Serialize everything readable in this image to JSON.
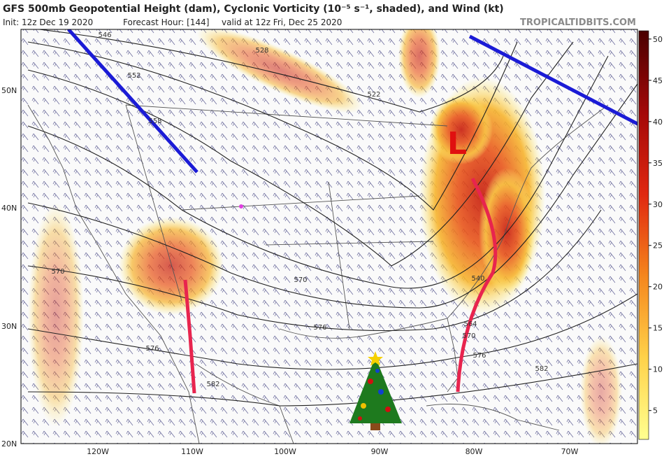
{
  "header": {
    "title": "GFS 500mb Geopotential Height (dam), Cyclonic Vorticity (10⁻⁵ s⁻¹, shaded), and Wind (kt)",
    "init": "Init: 12z Dec 19 2020",
    "forecast": "Forecast Hour: [144]",
    "valid": "valid at 12z Fri, Dec 25 2020",
    "source": "TROPICALTIDBITS.COM"
  },
  "map": {
    "lat_labels": [
      "50N",
      "40N",
      "30N",
      "20N"
    ],
    "lon_labels": [
      "120W",
      "110W",
      "100W",
      "90W",
      "80W",
      "70W"
    ],
    "contour_labels": [
      "546",
      "552",
      "558",
      "528",
      "522",
      "570",
      "576",
      "570",
      "576",
      "582",
      "540",
      "564",
      "570",
      "576",
      "582"
    ],
    "low_label": "L"
  },
  "colorbar": {
    "range": [
      1.5,
      51
    ],
    "ticks": [
      5,
      10,
      15,
      20,
      25,
      30,
      35,
      40,
      45,
      50
    ]
  }
}
